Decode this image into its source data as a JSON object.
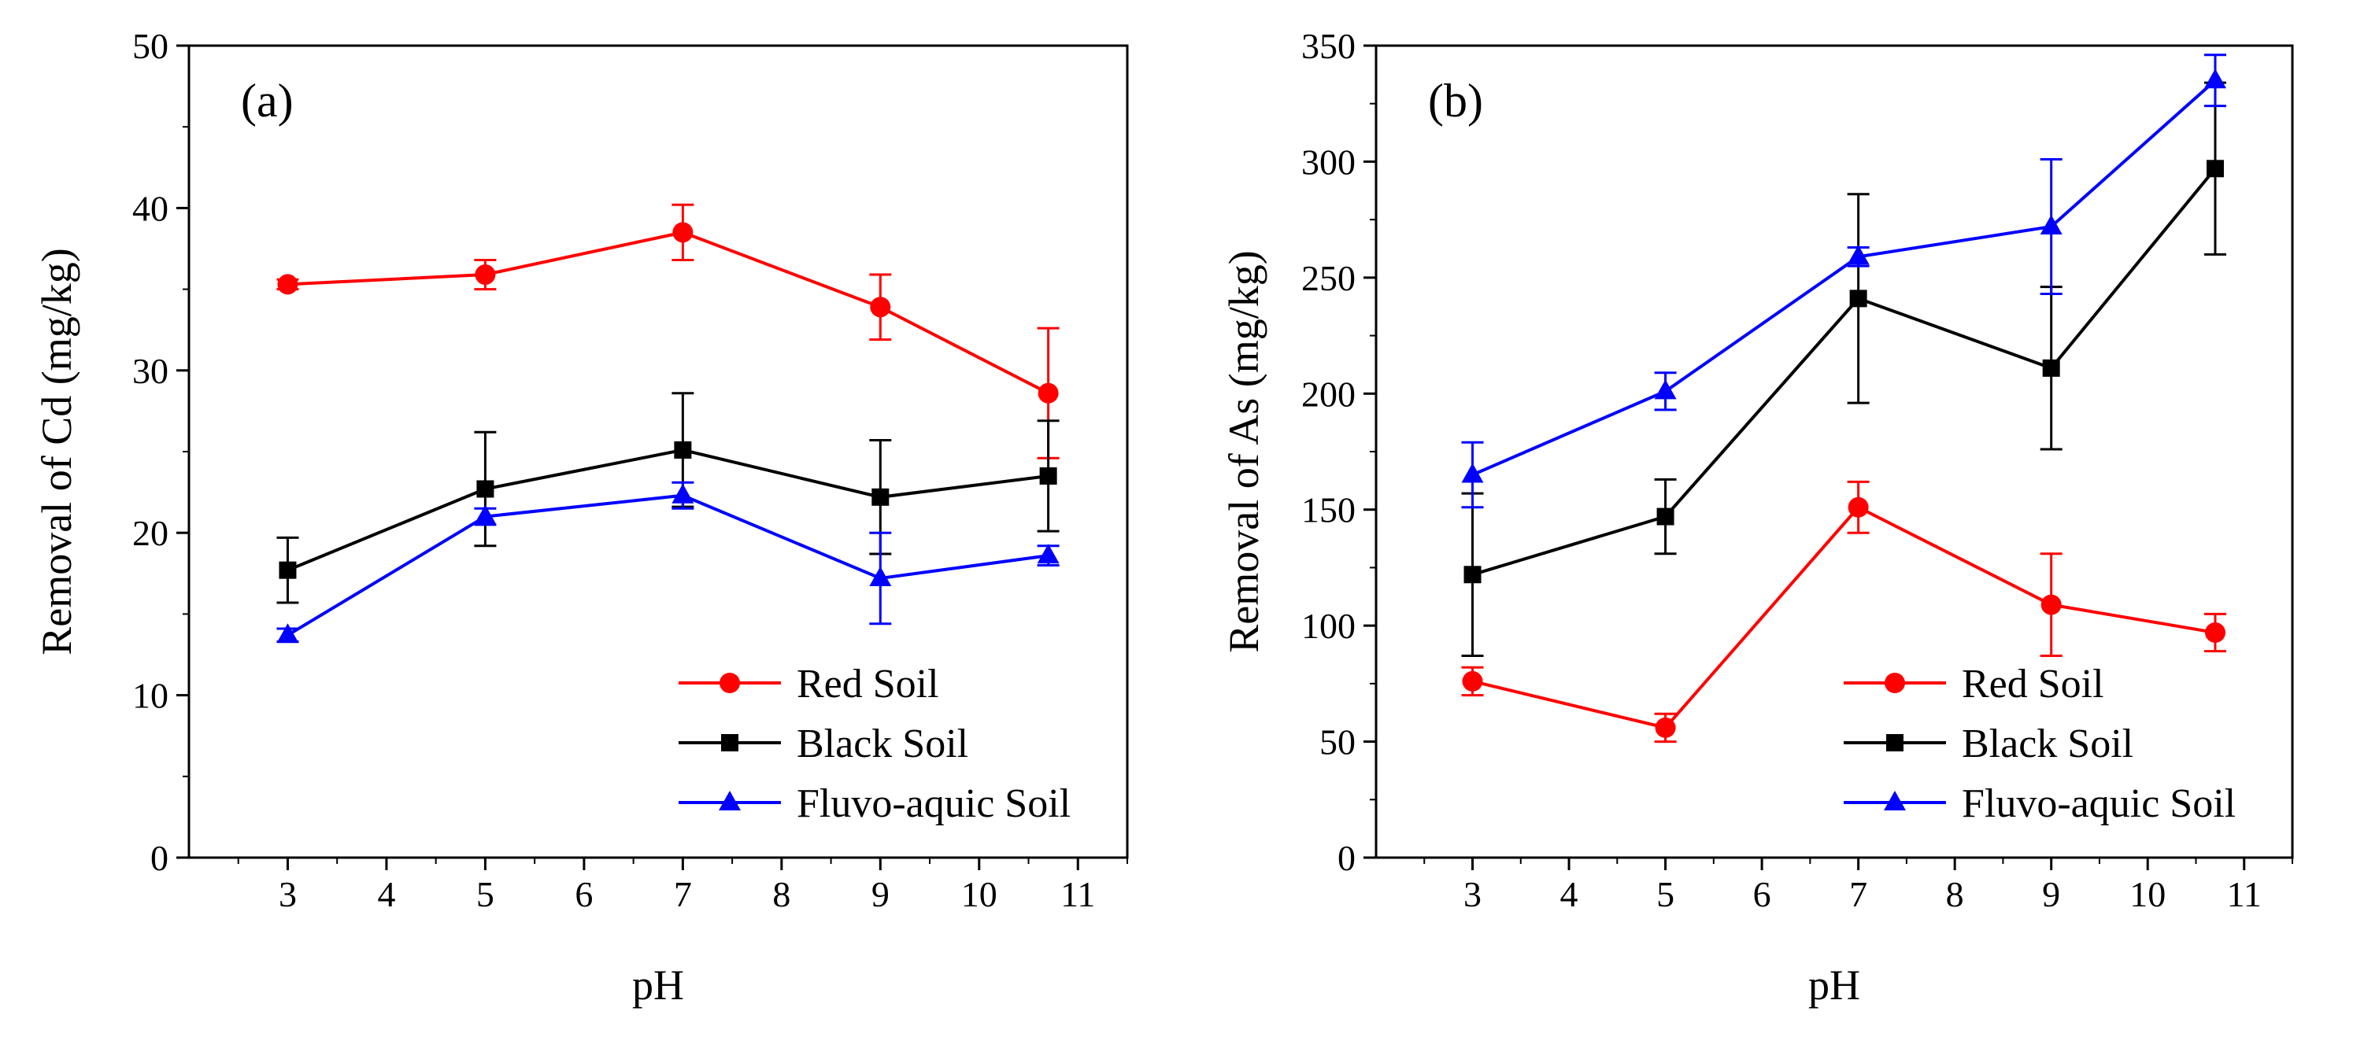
{
  "chart_data": [
    {
      "type": "line",
      "panel_label": "(a)",
      "xlabel": "pH",
      "ylabel": "Removal of Cd (mg/kg)",
      "xlim": [
        2,
        11.5
      ],
      "ylim": [
        0,
        50
      ],
      "xticks": [
        3,
        4,
        5,
        6,
        7,
        8,
        9,
        10,
        11
      ],
      "yticks": [
        0,
        10,
        20,
        30,
        40,
        50
      ],
      "legend_position": "bottom-right",
      "series": [
        {
          "name": "Red Soil",
          "color": "#ff0000",
          "marker": "circle",
          "x": [
            3,
            5,
            7,
            9,
            10.7
          ],
          "y": [
            35.3,
            35.9,
            38.5,
            33.9,
            28.6
          ],
          "err": [
            0.3,
            0.9,
            1.7,
            2.0,
            4.0
          ]
        },
        {
          "name": "Black Soil",
          "color": "#000000",
          "marker": "square",
          "x": [
            3,
            5,
            7,
            9,
            10.7
          ],
          "y": [
            17.7,
            22.7,
            25.1,
            22.2,
            23.5
          ],
          "err": [
            2.0,
            3.5,
            3.5,
            3.5,
            3.4
          ]
        },
        {
          "name": "Fluvo-aquic Soil",
          "color": "#0000ff",
          "marker": "triangle",
          "x": [
            3,
            5,
            7,
            9,
            10.7
          ],
          "y": [
            13.7,
            21.0,
            22.3,
            17.2,
            18.6
          ],
          "err": [
            0.4,
            0.5,
            0.8,
            2.8,
            0.6
          ]
        }
      ]
    },
    {
      "type": "line",
      "panel_label": "(b)",
      "xlabel": "pH",
      "ylabel": "Removal of As (mg/kg)",
      "xlim": [
        2,
        11.5
      ],
      "ylim": [
        0,
        350
      ],
      "xticks": [
        3,
        4,
        5,
        6,
        7,
        8,
        9,
        10,
        11
      ],
      "yticks": [
        0,
        50,
        100,
        150,
        200,
        250,
        300,
        350
      ],
      "legend_position": "bottom-right",
      "series": [
        {
          "name": "Red Soil",
          "color": "#ff0000",
          "marker": "circle",
          "x": [
            3,
            5,
            7,
            9,
            10.7
          ],
          "y": [
            76,
            56,
            151,
            109,
            97
          ],
          "err": [
            6,
            6,
            11,
            22,
            8
          ]
        },
        {
          "name": "Black Soil",
          "color": "#000000",
          "marker": "square",
          "x": [
            3,
            5,
            7,
            9,
            10.7
          ],
          "y": [
            122,
            147,
            241,
            211,
            297
          ],
          "err": [
            35,
            16,
            45,
            35,
            37
          ]
        },
        {
          "name": "Fluvo-aquic Soil",
          "color": "#0000ff",
          "marker": "triangle",
          "x": [
            3,
            5,
            7,
            9,
            10.7
          ],
          "y": [
            165,
            201,
            259,
            272,
            335
          ],
          "err": [
            14,
            8,
            4,
            29,
            11
          ]
        }
      ]
    }
  ]
}
